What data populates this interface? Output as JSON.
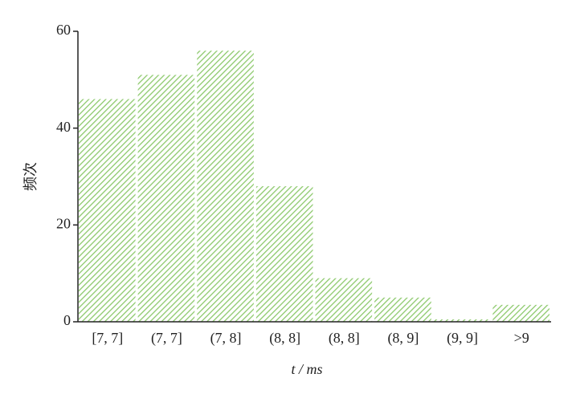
{
  "chart_data": {
    "type": "bar",
    "categories": [
      "[7, 7]",
      "(7, 7]",
      "(7, 8]",
      "(8, 8]",
      "(8, 8]",
      "(8, 9]",
      "(9, 9]",
      ">9"
    ],
    "values": [
      46,
      51,
      56,
      28,
      9,
      5,
      0.5,
      3.5
    ],
    "color": "#8cc96b",
    "xlabel": "t / ms",
    "ylabel": "频次",
    "ylim": [
      0,
      60
    ],
    "yticks": [
      0,
      20,
      40,
      60
    ],
    "grid": false
  }
}
